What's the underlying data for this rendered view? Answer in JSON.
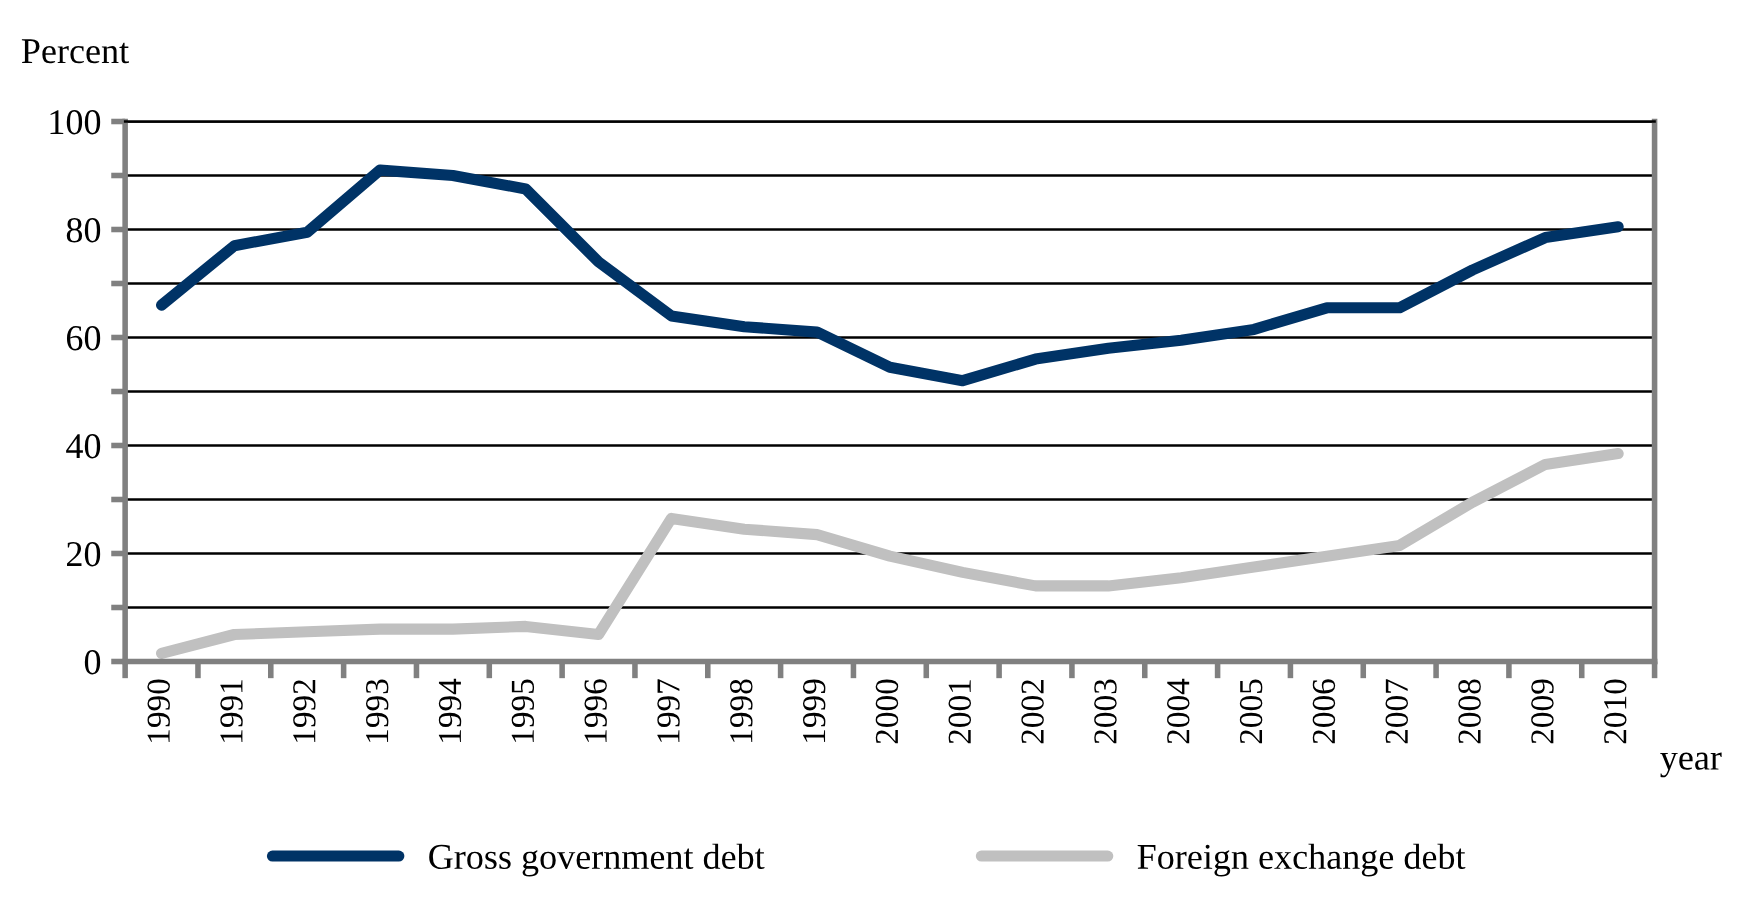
{
  "chart_data": {
    "type": "line",
    "ylabel": "Percent",
    "xlabel": "year",
    "categories": [
      "1990",
      "1991",
      "1992",
      "1993",
      "1994",
      "1995",
      "1996",
      "1997",
      "1998",
      "1999",
      "2000",
      "2001",
      "2002",
      "2003",
      "2004",
      "2005",
      "2006",
      "2007",
      "2008",
      "2009",
      "2010"
    ],
    "series": [
      {
        "name": "Gross government debt",
        "color": "#003366",
        "values": [
          66,
          77,
          79.5,
          91,
          90,
          87.5,
          74,
          64,
          62,
          61,
          54.5,
          52,
          56,
          58,
          59.5,
          61.5,
          65.5,
          65.5,
          72.5,
          78.5,
          80.5
        ]
      },
      {
        "name": "Foreign exchange debt",
        "color": "#c0c0c0",
        "values": [
          1.5,
          5,
          5.5,
          6,
          6,
          6.5,
          5,
          26.5,
          24.5,
          23.5,
          19.5,
          16.5,
          14,
          14,
          15.5,
          17.5,
          19.5,
          21.5,
          29.5,
          36.5,
          38.5
        ]
      }
    ],
    "ylim": [
      0,
      100
    ],
    "yticks": [
      0,
      {
        "value": 10,
        "label": null
      },
      20,
      {
        "value": 30,
        "label": null
      },
      40,
      {
        "value": 50,
        "label": null
      },
      60,
      {
        "value": 70,
        "label": null
      },
      80,
      {
        "value": 90,
        "label": null
      },
      100
    ],
    "grid": "y",
    "legend": "bottom",
    "marker": "none",
    "line_style": "solid"
  }
}
